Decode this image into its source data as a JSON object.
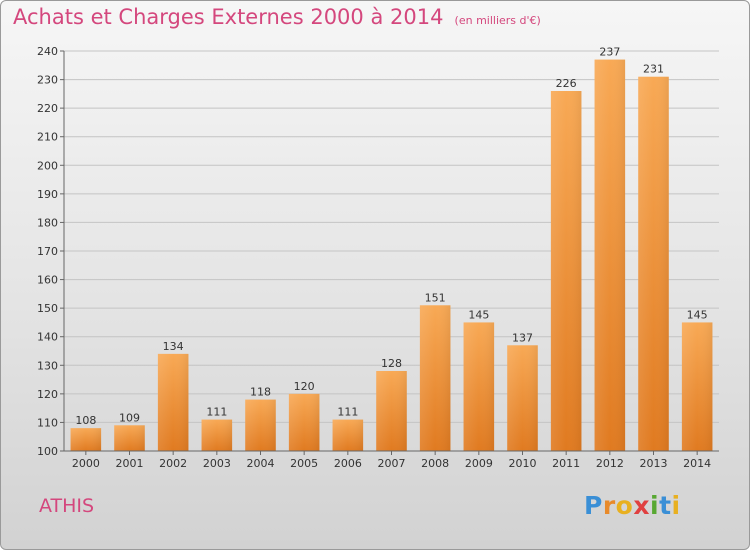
{
  "chart_data": {
    "type": "bar",
    "title": "Achats et Charges Externes 2000 à 2014",
    "subtitle": "(en milliers d'€)",
    "categories": [
      "2000",
      "2001",
      "2002",
      "2003",
      "2004",
      "2005",
      "2006",
      "2007",
      "2008",
      "2009",
      "2010",
      "2011",
      "2012",
      "2013",
      "2014"
    ],
    "values": [
      108,
      109,
      134,
      111,
      118,
      120,
      111,
      128,
      151,
      145,
      137,
      226,
      237,
      231,
      145
    ],
    "ylim": [
      100,
      240
    ],
    "yticks": [
      100,
      110,
      120,
      130,
      140,
      150,
      160,
      170,
      180,
      190,
      200,
      210,
      220,
      230,
      240
    ],
    "grid": true,
    "bar_color": "#e8832a",
    "bar_color_light": "#f8a955"
  },
  "place": "ATHIS",
  "logo": {
    "letters": [
      "P",
      "r",
      "o",
      "x",
      "i",
      "t",
      "i"
    ],
    "colors": [
      "#3a8fd6",
      "#e88a2a",
      "#e8b020",
      "#e04040",
      "#58a832",
      "#3a8fd6",
      "#e8b020"
    ]
  }
}
